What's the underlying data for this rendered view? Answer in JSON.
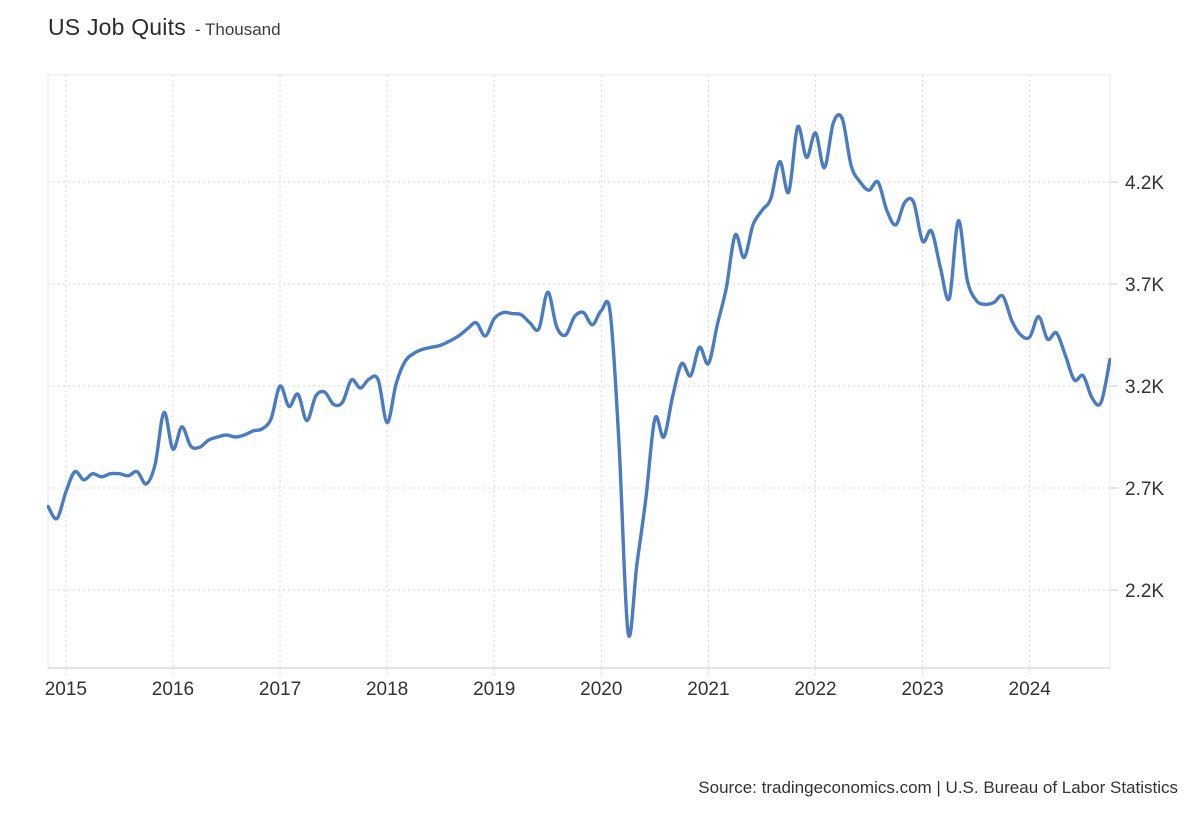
{
  "header": {
    "title": "US Job Quits",
    "subtitle": "- Thousand"
  },
  "footer": {
    "source": "Source: tradingeconomics.com | U.S. Bureau of Labor Statistics"
  },
  "colors": {
    "line": "#4a7cbf",
    "grid": "#d8d8d8",
    "frame": "#e8e8e8",
    "axis": "#c9c9c9",
    "tick": "#cccccc",
    "text": "#333333"
  },
  "chart_data": {
    "type": "line",
    "title": "US Job Quits",
    "unit": "Thousand",
    "legend": "none",
    "grid": "dotted",
    "ylim": [
      1820,
      4730
    ],
    "y_ticks": [
      {
        "label": "4.2K",
        "value": 4200
      },
      {
        "label": "3.7K",
        "value": 3700
      },
      {
        "label": "3.2K",
        "value": 3200
      },
      {
        "label": "2.7K",
        "value": 2700
      },
      {
        "label": "2.2K",
        "value": 2200
      }
    ],
    "x_ticks": [
      "2015",
      "2016",
      "2017",
      "2018",
      "2019",
      "2020",
      "2021",
      "2022",
      "2023",
      "2024"
    ],
    "months": [
      "2014-11",
      "2014-12",
      "2015-01",
      "2015-02",
      "2015-03",
      "2015-04",
      "2015-05",
      "2015-06",
      "2015-07",
      "2015-08",
      "2015-09",
      "2015-10",
      "2015-11",
      "2015-12",
      "2016-01",
      "2016-02",
      "2016-03",
      "2016-04",
      "2016-05",
      "2016-06",
      "2016-07",
      "2016-08",
      "2016-09",
      "2016-10",
      "2016-11",
      "2016-12",
      "2017-01",
      "2017-02",
      "2017-03",
      "2017-04",
      "2017-05",
      "2017-06",
      "2017-07",
      "2017-08",
      "2017-09",
      "2017-10",
      "2017-11",
      "2017-12",
      "2018-01",
      "2018-02",
      "2018-03",
      "2018-04",
      "2018-05",
      "2018-06",
      "2018-07",
      "2018-08",
      "2018-09",
      "2018-10",
      "2018-11",
      "2018-12",
      "2019-01",
      "2019-02",
      "2019-03",
      "2019-04",
      "2019-05",
      "2019-06",
      "2019-07",
      "2019-08",
      "2019-09",
      "2019-10",
      "2019-11",
      "2019-12",
      "2020-01",
      "2020-02",
      "2020-03",
      "2020-04",
      "2020-05",
      "2020-06",
      "2020-07",
      "2020-08",
      "2020-09",
      "2020-10",
      "2020-11",
      "2020-12",
      "2021-01",
      "2021-02",
      "2021-03",
      "2021-04",
      "2021-05",
      "2021-06",
      "2021-07",
      "2021-08",
      "2021-09",
      "2021-10",
      "2021-11",
      "2021-12",
      "2022-01",
      "2022-02",
      "2022-03",
      "2022-04",
      "2022-05",
      "2022-06",
      "2022-07",
      "2022-08",
      "2022-09",
      "2022-10",
      "2022-11",
      "2022-12",
      "2023-01",
      "2023-02",
      "2023-03",
      "2023-04",
      "2023-05",
      "2023-06",
      "2023-07",
      "2023-08",
      "2023-09",
      "2023-10",
      "2023-11",
      "2023-12",
      "2024-01",
      "2024-02",
      "2024-03",
      "2024-04",
      "2024-05",
      "2024-06",
      "2024-07",
      "2024-08",
      "2024-09",
      "2024-10"
    ],
    "values": [
      2610,
      2550,
      2680,
      2780,
      2740,
      2770,
      2755,
      2770,
      2770,
      2760,
      2780,
      2720,
      2815,
      3070,
      2890,
      3000,
      2905,
      2900,
      2935,
      2950,
      2960,
      2950,
      2960,
      2980,
      2990,
      3040,
      3200,
      3100,
      3160,
      3030,
      3150,
      3170,
      3110,
      3120,
      3230,
      3190,
      3235,
      3230,
      3020,
      3210,
      3320,
      3360,
      3380,
      3390,
      3400,
      3420,
      3445,
      3480,
      3510,
      3445,
      3530,
      3560,
      3555,
      3550,
      3510,
      3480,
      3660,
      3490,
      3450,
      3540,
      3560,
      3500,
      3570,
      3560,
      2900,
      1990,
      2330,
      2650,
      3040,
      2950,
      3150,
      3310,
      3250,
      3390,
      3310,
      3500,
      3680,
      3940,
      3830,
      3990,
      4060,
      4120,
      4300,
      4150,
      4470,
      4320,
      4440,
      4270,
      4490,
      4510,
      4280,
      4200,
      4160,
      4200,
      4060,
      3990,
      4100,
      4100,
      3910,
      3960,
      3780,
      3630,
      4010,
      3720,
      3620,
      3600,
      3610,
      3640,
      3520,
      3450,
      3440,
      3540,
      3430,
      3460,
      3350,
      3230,
      3250,
      3140,
      3120,
      3330
    ]
  }
}
